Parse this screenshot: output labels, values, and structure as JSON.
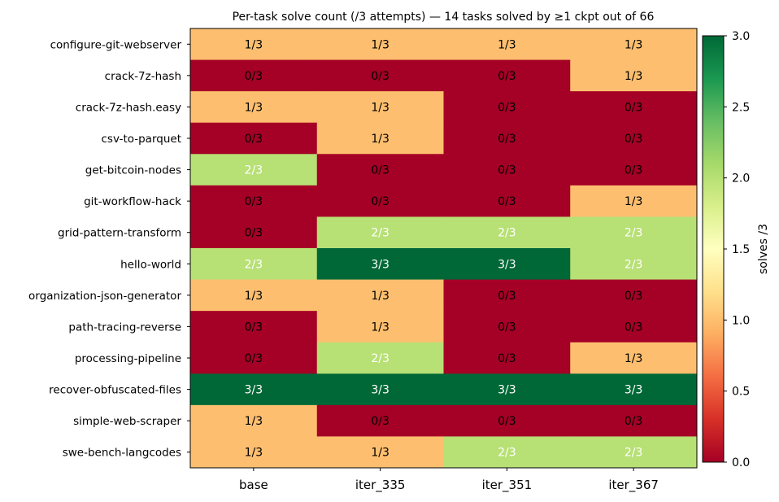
{
  "chart_data": {
    "type": "heatmap",
    "title": "Per-task solve count (/3 attempts) — 14 tasks solved by ≥1 ckpt out of 66",
    "rows": [
      "configure-git-webserver",
      "crack-7z-hash",
      "crack-7z-hash.easy",
      "csv-to-parquet",
      "get-bitcoin-nodes",
      "git-workflow-hack",
      "grid-pattern-transform",
      "hello-world",
      "organization-json-generator",
      "path-tracing-reverse",
      "processing-pipeline",
      "recover-obfuscated-files",
      "simple-web-scraper",
      "swe-bench-langcodes"
    ],
    "columns": [
      "base",
      "iter_335",
      "iter_351",
      "iter_367"
    ],
    "values": [
      [
        1,
        1,
        1,
        1
      ],
      [
        0,
        0,
        0,
        1
      ],
      [
        1,
        1,
        0,
        0
      ],
      [
        0,
        1,
        0,
        0
      ],
      [
        2,
        0,
        0,
        0
      ],
      [
        0,
        0,
        0,
        1
      ],
      [
        0,
        2,
        2,
        2
      ],
      [
        2,
        3,
        3,
        2
      ],
      [
        1,
        1,
        0,
        0
      ],
      [
        0,
        1,
        0,
        0
      ],
      [
        0,
        2,
        0,
        1
      ],
      [
        3,
        3,
        3,
        3
      ],
      [
        1,
        0,
        0,
        0
      ],
      [
        1,
        1,
        2,
        2
      ]
    ],
    "cell_labels": [
      [
        "1/3",
        "1/3",
        "1/3",
        "1/3"
      ],
      [
        "0/3",
        "0/3",
        "0/3",
        "1/3"
      ],
      [
        "1/3",
        "1/3",
        "0/3",
        "0/3"
      ],
      [
        "0/3",
        "1/3",
        "0/3",
        "0/3"
      ],
      [
        "2/3",
        "0/3",
        "0/3",
        "0/3"
      ],
      [
        "0/3",
        "0/3",
        "0/3",
        "1/3"
      ],
      [
        "0/3",
        "2/3",
        "2/3",
        "2/3"
      ],
      [
        "2/3",
        "3/3",
        "3/3",
        "2/3"
      ],
      [
        "1/3",
        "1/3",
        "0/3",
        "0/3"
      ],
      [
        "0/3",
        "1/3",
        "0/3",
        "0/3"
      ],
      [
        "0/3",
        "2/3",
        "0/3",
        "1/3"
      ],
      [
        "3/3",
        "3/3",
        "3/3",
        "3/3"
      ],
      [
        "1/3",
        "0/3",
        "0/3",
        "0/3"
      ],
      [
        "1/3",
        "1/3",
        "2/3",
        "2/3"
      ]
    ],
    "colorscale": "RdYlGn",
    "value_colors": {
      "0": "#a50026",
      "1": "#fdbf6f",
      "2": "#b7e075",
      "3": "#006837"
    },
    "colorbar": {
      "label": "solves /3",
      "range": [
        0,
        3
      ],
      "ticks": [
        0.0,
        0.5,
        1.0,
        1.5,
        2.0,
        2.5,
        3.0
      ],
      "tick_labels": [
        "0.0",
        "0.5",
        "1.0",
        "1.5",
        "2.0",
        "2.5",
        "3.0"
      ]
    }
  }
}
